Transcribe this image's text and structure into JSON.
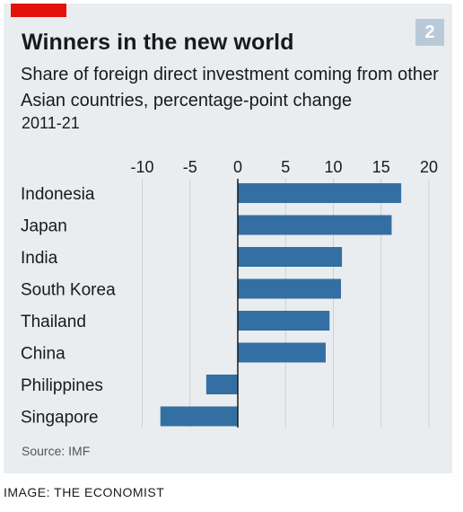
{
  "header": {
    "title": "Winners in the new world",
    "chart_number": "2",
    "subtitle": "Share of foreign direct investment coming from other Asian countries, percentage-point change",
    "date_range": "2011-21"
  },
  "footer": {
    "source": "Source: IMF",
    "credit": "IMAGE: THE ECONOMIST"
  },
  "colors": {
    "bar": "#336fa3",
    "brand_red": "#e3120b",
    "background": "#e9edf0"
  },
  "chart_data": {
    "type": "bar",
    "orientation": "horizontal",
    "title": "Winners in the new world",
    "subtitle": "Share of foreign direct investment coming from other Asian countries, percentage-point change",
    "period": "2011-21",
    "categories": [
      "Indonesia",
      "Japan",
      "India",
      "South Korea",
      "Thailand",
      "China",
      "Philippines",
      "Singapore"
    ],
    "values": [
      17.1,
      16.1,
      10.9,
      10.8,
      9.6,
      9.2,
      -3.3,
      -8.1
    ],
    "xlim": [
      -11,
      21
    ],
    "xticks": [
      -10,
      -5,
      0,
      5,
      10,
      15,
      20
    ],
    "xtick_labels": [
      "-10",
      "-5",
      "0",
      "5",
      "10",
      "15",
      "20"
    ],
    "grid": true,
    "legend": "none"
  }
}
